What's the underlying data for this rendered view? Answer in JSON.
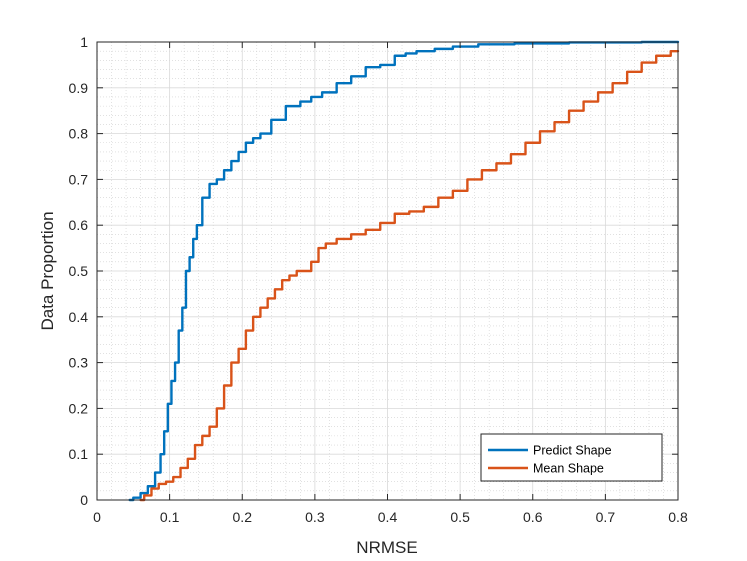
{
  "chart_data": {
    "type": "line",
    "title": "",
    "xlabel": "NRMSE",
    "ylabel": "Data Proportion",
    "xlim": [
      0,
      0.8
    ],
    "ylim": [
      0,
      1
    ],
    "x_ticks": [
      0,
      0.1,
      0.2,
      0.3,
      0.4,
      0.5,
      0.6,
      0.7,
      0.8
    ],
    "y_ticks": [
      0,
      0.1,
      0.2,
      0.3,
      0.4,
      0.5,
      0.6,
      0.7,
      0.8,
      0.9,
      1
    ],
    "x_tick_labels": [
      "0",
      "0.1",
      "0.2",
      "0.3",
      "0.4",
      "0.5",
      "0.6",
      "0.7",
      "0.8"
    ],
    "y_tick_labels": [
      "0",
      "0.1",
      "0.2",
      "0.3",
      "0.4",
      "0.5",
      "0.6",
      "0.7",
      "0.8",
      "0.9",
      "1"
    ],
    "grid": true,
    "minor_grid": true,
    "legend_position": "bottom-right",
    "series": [
      {
        "name": "Predict Shape",
        "color": "#0072BD",
        "x": [
          0.045,
          0.055,
          0.065,
          0.075,
          0.085,
          0.09,
          0.095,
          0.1,
          0.105,
          0.11,
          0.115,
          0.12,
          0.125,
          0.13,
          0.135,
          0.14,
          0.15,
          0.16,
          0.17,
          0.18,
          0.19,
          0.2,
          0.21,
          0.22,
          0.23,
          0.25,
          0.27,
          0.29,
          0.3,
          0.32,
          0.34,
          0.36,
          0.38,
          0.4,
          0.42,
          0.43,
          0.45,
          0.48,
          0.5,
          0.55,
          0.6,
          0.7,
          0.8
        ],
        "y": [
          0,
          0.005,
          0.015,
          0.03,
          0.06,
          0.1,
          0.15,
          0.21,
          0.26,
          0.3,
          0.37,
          0.42,
          0.5,
          0.53,
          0.57,
          0.6,
          0.66,
          0.69,
          0.7,
          0.72,
          0.74,
          0.76,
          0.78,
          0.79,
          0.8,
          0.83,
          0.86,
          0.87,
          0.88,
          0.89,
          0.91,
          0.925,
          0.945,
          0.95,
          0.97,
          0.975,
          0.98,
          0.985,
          0.99,
          0.995,
          0.997,
          0.999,
          1
        ]
      },
      {
        "name": "Mean Shape",
        "color": "#D95319",
        "x": [
          0.06,
          0.07,
          0.08,
          0.09,
          0.1,
          0.11,
          0.12,
          0.13,
          0.14,
          0.15,
          0.16,
          0.17,
          0.18,
          0.19,
          0.2,
          0.21,
          0.22,
          0.23,
          0.24,
          0.25,
          0.26,
          0.27,
          0.28,
          0.29,
          0.3,
          0.31,
          0.32,
          0.34,
          0.36,
          0.38,
          0.4,
          0.42,
          0.44,
          0.46,
          0.48,
          0.5,
          0.52,
          0.54,
          0.56,
          0.58,
          0.6,
          0.62,
          0.64,
          0.66,
          0.68,
          0.7,
          0.72,
          0.74,
          0.76,
          0.78,
          0.8
        ],
        "y": [
          0,
          0.01,
          0.025,
          0.035,
          0.04,
          0.05,
          0.07,
          0.09,
          0.12,
          0.14,
          0.16,
          0.2,
          0.25,
          0.3,
          0.33,
          0.37,
          0.4,
          0.42,
          0.44,
          0.46,
          0.48,
          0.49,
          0.5,
          0.5,
          0.52,
          0.55,
          0.56,
          0.57,
          0.58,
          0.59,
          0.605,
          0.625,
          0.63,
          0.64,
          0.66,
          0.675,
          0.7,
          0.72,
          0.735,
          0.755,
          0.78,
          0.805,
          0.825,
          0.85,
          0.87,
          0.89,
          0.91,
          0.935,
          0.955,
          0.97,
          0.98
        ]
      }
    ]
  },
  "legend": {
    "items": [
      {
        "label": "Predict Shape",
        "color": "#0072BD"
      },
      {
        "label": "Mean Shape",
        "color": "#D95319"
      }
    ]
  }
}
